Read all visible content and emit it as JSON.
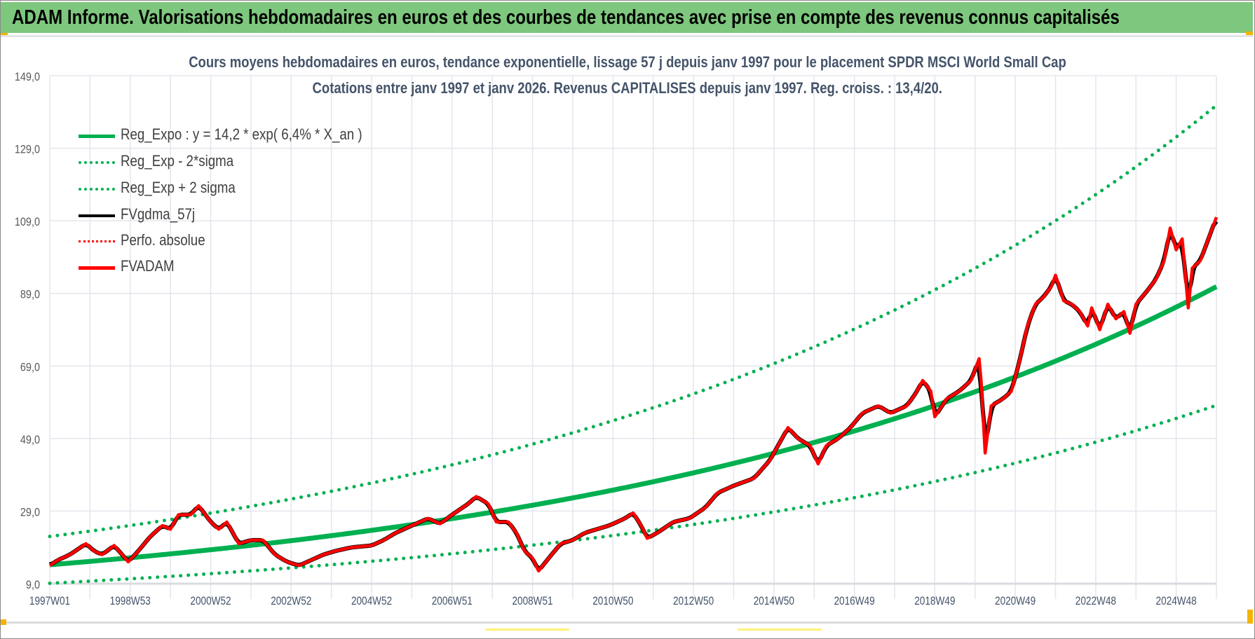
{
  "header": {
    "title": "ADAM Informe. Valorisations hebdomadaires en euros et des courbes de tendances avec prise en compte des revenus connus capitalisés"
  },
  "chart_data": {
    "type": "line",
    "title": "Cours moyens hebdomadaires en euros, tendance exponentielle, lissage 57 j depuis janv 1997 pour le placement SPDR MSCI World Small Cap",
    "subtitle": "Cotations entre janv 1997 et janv 2026. Revenus CAPITALISES depuis janv 1997. Reg. croiss. : 13,4/20.",
    "xlabel": "",
    "ylabel": "",
    "xlim": [
      1997.0,
      2026.0
    ],
    "ylim": [
      9,
      149
    ],
    "y_ticks": [
      "149,0",
      "129,0",
      "109,0",
      "89,0",
      "69,0",
      "49,0",
      "29,0",
      "9,0"
    ],
    "y_tick_values": [
      149,
      129,
      109,
      89,
      69,
      49,
      29,
      9
    ],
    "x_ticks": [
      "1997W01",
      "1998W53",
      "2000W52",
      "2002W52",
      "2004W52",
      "2006W51",
      "2008W51",
      "2010W50",
      "2012W50",
      "2014W50",
      "2016W49",
      "2018W49",
      "2020W49",
      "2022W48",
      "2024W48"
    ],
    "x_tick_values": [
      1997.0,
      1999.0,
      2001.0,
      2003.0,
      2005.0,
      2007.0,
      2009.0,
      2011.0,
      2013.0,
      2015.0,
      2017.0,
      2019.0,
      2021.0,
      2023.0,
      2025.0
    ],
    "grid": true,
    "legend_placement": "top-left",
    "legend": [
      {
        "label": "Reg_Expo : y = 14,2 * exp( 6,4% *  X_an )",
        "style": "solid",
        "color": "#00b050"
      },
      {
        "label": "Reg_Exp - 2*sigma",
        "style": "dotted",
        "color": "#00b050"
      },
      {
        "label": "Reg_Exp + 2 sigma",
        "style": "dotted",
        "color": "#00b050"
      },
      {
        "label": "FVgdma_57j",
        "style": "solid",
        "color": "#000000"
      },
      {
        "label": "Perfo. absolue",
        "style": "dotted",
        "color": "#ff0000"
      },
      {
        "label": "FVADAM",
        "style": "solid",
        "color": "#ff0000"
      }
    ],
    "regression": {
      "a": 14.2,
      "rate": 0.064,
      "lower_factor": 0.64,
      "upper_factor": 1.55
    },
    "series": [
      {
        "name": "FVADAM",
        "points": [
          [
            1997.0,
            14
          ],
          [
            1997.2,
            15.5
          ],
          [
            1997.5,
            17
          ],
          [
            1997.9,
            20
          ],
          [
            1998.1,
            18
          ],
          [
            1998.3,
            17
          ],
          [
            1998.6,
            19.5
          ],
          [
            1998.8,
            17
          ],
          [
            1998.95,
            15
          ],
          [
            1999.2,
            18
          ],
          [
            1999.5,
            22
          ],
          [
            1999.8,
            25
          ],
          [
            2000.0,
            24
          ],
          [
            2000.2,
            28
          ],
          [
            2000.5,
            28
          ],
          [
            2000.7,
            30.5
          ],
          [
            2001.0,
            26
          ],
          [
            2001.2,
            24
          ],
          [
            2001.4,
            26
          ],
          [
            2001.7,
            20
          ],
          [
            2002.0,
            21
          ],
          [
            2002.3,
            21
          ],
          [
            2002.6,
            17
          ],
          [
            2002.9,
            15
          ],
          [
            2003.2,
            14
          ],
          [
            2003.5,
            15.5
          ],
          [
            2003.8,
            17
          ],
          [
            2004.1,
            18
          ],
          [
            2004.5,
            19
          ],
          [
            2005.0,
            19.5
          ],
          [
            2005.3,
            21
          ],
          [
            2005.6,
            23
          ],
          [
            2006.0,
            25
          ],
          [
            2006.4,
            27
          ],
          [
            2006.7,
            25.5
          ],
          [
            2007.0,
            28
          ],
          [
            2007.4,
            31
          ],
          [
            2007.6,
            33
          ],
          [
            2007.9,
            31
          ],
          [
            2008.1,
            26
          ],
          [
            2008.4,
            26
          ],
          [
            2008.6,
            23
          ],
          [
            2008.8,
            18
          ],
          [
            2009.0,
            16
          ],
          [
            2009.15,
            12.5
          ],
          [
            2009.4,
            16
          ],
          [
            2009.7,
            20
          ],
          [
            2010.0,
            21
          ],
          [
            2010.3,
            23
          ],
          [
            2010.6,
            24
          ],
          [
            2010.9,
            25
          ],
          [
            2011.3,
            27
          ],
          [
            2011.5,
            28.5
          ],
          [
            2011.7,
            25
          ],
          [
            2011.85,
            21.5
          ],
          [
            2012.1,
            23
          ],
          [
            2012.5,
            26
          ],
          [
            2012.9,
            27
          ],
          [
            2013.3,
            30
          ],
          [
            2013.6,
            34
          ],
          [
            2014.0,
            36
          ],
          [
            2014.5,
            38
          ],
          [
            2014.9,
            43
          ],
          [
            2015.2,
            49
          ],
          [
            2015.35,
            52
          ],
          [
            2015.6,
            49
          ],
          [
            2015.9,
            47
          ],
          [
            2016.1,
            42
          ],
          [
            2016.3,
            47
          ],
          [
            2016.6,
            49
          ],
          [
            2016.9,
            52
          ],
          [
            2017.2,
            56
          ],
          [
            2017.6,
            58
          ],
          [
            2017.9,
            56
          ],
          [
            2018.3,
            58
          ],
          [
            2018.5,
            61
          ],
          [
            2018.7,
            65
          ],
          [
            2018.9,
            62
          ],
          [
            2019.0,
            55
          ],
          [
            2019.3,
            60
          ],
          [
            2019.6,
            62
          ],
          [
            2019.9,
            65
          ],
          [
            2020.1,
            71
          ],
          [
            2020.15,
            65
          ],
          [
            2020.25,
            45
          ],
          [
            2020.4,
            58
          ],
          [
            2020.7,
            60
          ],
          [
            2020.9,
            62
          ],
          [
            2021.1,
            70
          ],
          [
            2021.3,
            80
          ],
          [
            2021.5,
            86
          ],
          [
            2021.7,
            88
          ],
          [
            2021.9,
            91
          ],
          [
            2022.0,
            94
          ],
          [
            2022.2,
            87
          ],
          [
            2022.4,
            86
          ],
          [
            2022.6,
            84
          ],
          [
            2022.8,
            80
          ],
          [
            2022.9,
            85
          ],
          [
            2023.1,
            79
          ],
          [
            2023.3,
            86
          ],
          [
            2023.5,
            82
          ],
          [
            2023.7,
            84
          ],
          [
            2023.85,
            78
          ],
          [
            2024.0,
            86
          ],
          [
            2024.3,
            90
          ],
          [
            2024.5,
            93
          ],
          [
            2024.7,
            98
          ],
          [
            2024.85,
            107
          ],
          [
            2025.0,
            101
          ],
          [
            2025.15,
            104
          ],
          [
            2025.3,
            85
          ],
          [
            2025.4,
            96
          ],
          [
            2025.6,
            98
          ],
          [
            2025.8,
            104
          ],
          [
            2026.0,
            110
          ]
        ]
      }
    ]
  }
}
